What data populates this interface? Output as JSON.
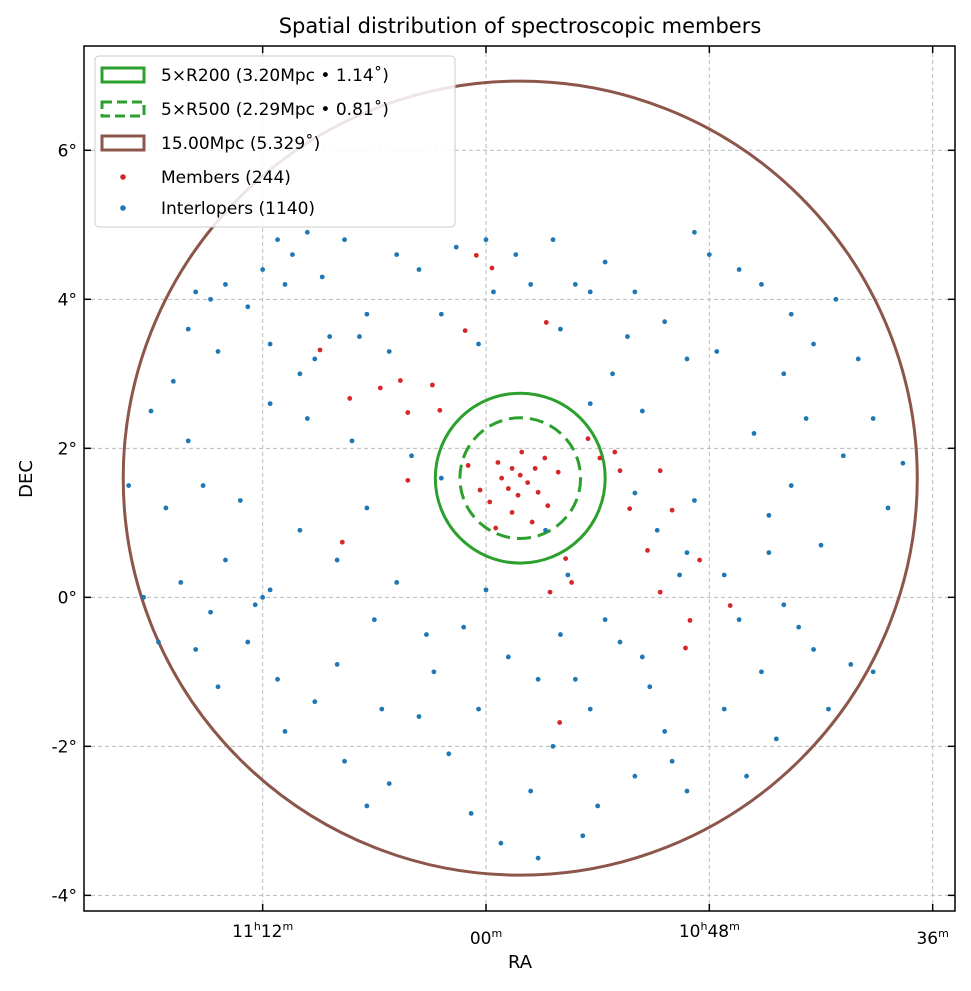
{
  "chart_data": {
    "type": "scatter",
    "title": "Spatial distribution of spectroscopic members",
    "xlabel": "RA",
    "ylabel": "DEC",
    "xlim_deg": [
      170.4,
      158.7
    ],
    "ylim_deg": [
      -4.21,
      7.4
    ],
    "grid": true,
    "legend_placement": "top-left",
    "x_ticks": [
      {
        "value": 168,
        "parts": [
          "11",
          "h",
          "12",
          "m"
        ]
      },
      {
        "value": 165,
        "parts": [
          "",
          "",
          "00",
          "m"
        ]
      },
      {
        "value": 162,
        "parts": [
          "10",
          "h",
          "48",
          "m"
        ]
      },
      {
        "value": 159,
        "parts": [
          "",
          "",
          "36",
          "m"
        ]
      }
    ],
    "y_ticks": [
      {
        "value": 6,
        "label": "6°"
      },
      {
        "value": 4,
        "label": "4°"
      },
      {
        "value": 2,
        "label": "2°"
      },
      {
        "value": 0,
        "label": "0°"
      },
      {
        "value": -2,
        "label": "-2°"
      },
      {
        "value": -4,
        "label": "-4°"
      }
    ],
    "center": {
      "ra": 164.54,
      "dec": 1.6
    },
    "circles": [
      {
        "name": "r200",
        "label": "5×R200 (3.20Mpc • 1.14˚)",
        "radius_deg": 1.14,
        "color": "#2ca02c",
        "dashed": false
      },
      {
        "name": "r500",
        "label": "5×R500 (2.29Mpc • 0.81˚)",
        "radius_deg": 0.81,
        "color": "#2ca02c",
        "dashed": true
      },
      {
        "name": "15mpc",
        "label": "15.00Mpc (5.329˚)",
        "radius_deg": 5.329,
        "color": "#8c564b",
        "dashed": false
      }
    ],
    "series": [
      {
        "name": "Interlopers",
        "label": "Interlopers (1140)",
        "color": "#1f77b4",
        "points": [
          [
            168.9,
            4.1
          ],
          [
            168.7,
            4.0
          ],
          [
            168.5,
            4.2
          ],
          [
            168.2,
            3.9
          ],
          [
            168.0,
            4.4
          ],
          [
            167.8,
            4.8
          ],
          [
            167.6,
            4.6
          ],
          [
            167.4,
            4.9
          ],
          [
            167.3,
            3.2
          ],
          [
            167.1,
            3.5
          ],
          [
            167.5,
            3.0
          ],
          [
            167.9,
            3.4
          ],
          [
            168.6,
            3.3
          ],
          [
            169.2,
            2.9
          ],
          [
            169.5,
            2.5
          ],
          [
            169.0,
            2.1
          ],
          [
            167.7,
            4.2
          ],
          [
            167.2,
            4.3
          ],
          [
            166.9,
            4.8
          ],
          [
            166.6,
            3.8
          ],
          [
            166.3,
            3.3
          ],
          [
            165.9,
            4.4
          ],
          [
            165.6,
            3.8
          ],
          [
            165.4,
            4.7
          ],
          [
            165.1,
            3.4
          ],
          [
            164.9,
            4.1
          ],
          [
            164.6,
            4.6
          ],
          [
            164.1,
            4.8
          ],
          [
            163.8,
            4.2
          ],
          [
            163.4,
            4.5
          ],
          [
            163.0,
            4.1
          ],
          [
            162.6,
            3.7
          ],
          [
            162.2,
            4.9
          ],
          [
            162.0,
            4.6
          ],
          [
            161.9,
            3.3
          ],
          [
            161.6,
            4.4
          ],
          [
            161.3,
            4.2
          ],
          [
            160.9,
            3.8
          ],
          [
            160.6,
            3.4
          ],
          [
            160.3,
            4.0
          ],
          [
            160.0,
            3.2
          ],
          [
            159.8,
            2.4
          ],
          [
            159.4,
            1.8
          ],
          [
            159.6,
            1.2
          ],
          [
            160.2,
            1.9
          ],
          [
            160.5,
            0.7
          ],
          [
            160.9,
            1.5
          ],
          [
            161.4,
            2.2
          ],
          [
            161.2,
            1.1
          ],
          [
            161.8,
            0.3
          ],
          [
            162.3,
            0.6
          ],
          [
            162.4,
            0.3
          ],
          [
            162.7,
            0.9
          ],
          [
            162.2,
            1.3
          ],
          [
            163.0,
            1.4
          ],
          [
            163.6,
            2.6
          ],
          [
            163.3,
            3.0
          ],
          [
            162.9,
            2.5
          ],
          [
            161.6,
            -0.3
          ],
          [
            161.0,
            -0.1
          ],
          [
            160.6,
            -0.7
          ],
          [
            160.1,
            -0.9
          ],
          [
            159.8,
            -1.0
          ],
          [
            160.4,
            -1.5
          ],
          [
            161.1,
            -1.9
          ],
          [
            161.5,
            -2.4
          ],
          [
            162.3,
            -2.6
          ],
          [
            162.6,
            -1.8
          ],
          [
            162.9,
            -0.8
          ],
          [
            163.4,
            -0.3
          ],
          [
            163.8,
            -1.1
          ],
          [
            164.1,
            -2.0
          ],
          [
            163.5,
            -2.8
          ],
          [
            163.7,
            -3.2
          ],
          [
            164.4,
            -2.6
          ],
          [
            164.8,
            -3.3
          ],
          [
            165.2,
            -2.9
          ],
          [
            165.5,
            -2.1
          ],
          [
            165.9,
            -1.6
          ],
          [
            166.3,
            -2.5
          ],
          [
            166.9,
            -2.2
          ],
          [
            167.3,
            -1.4
          ],
          [
            167.8,
            -1.1
          ],
          [
            168.2,
            -0.6
          ],
          [
            168.7,
            -0.2
          ],
          [
            169.1,
            0.2
          ],
          [
            168.9,
            -0.7
          ],
          [
            168.5,
            0.5
          ],
          [
            168.0,
            0.0
          ],
          [
            167.9,
            0.1
          ],
          [
            168.1,
            -0.1
          ],
          [
            167.5,
            0.9
          ],
          [
            167.0,
            0.5
          ],
          [
            166.6,
            1.2
          ],
          [
            166.2,
            0.2
          ],
          [
            165.8,
            -0.5
          ],
          [
            165.3,
            -0.4
          ],
          [
            165.0,
            0.1
          ],
          [
            164.7,
            -0.8
          ],
          [
            164.3,
            -1.1
          ],
          [
            163.9,
            0.3
          ],
          [
            164.2,
            0.9
          ],
          [
            165.6,
            1.6
          ],
          [
            166.0,
            1.9
          ],
          [
            166.8,
            2.1
          ],
          [
            167.4,
            2.4
          ],
          [
            168.3,
            1.3
          ],
          [
            169.3,
            1.2
          ],
          [
            169.6,
            0.0
          ],
          [
            169.4,
            -0.6
          ],
          [
            168.6,
            -1.2
          ],
          [
            167.7,
            -1.8
          ],
          [
            167.0,
            -0.9
          ],
          [
            166.5,
            -0.3
          ],
          [
            165.7,
            -1.0
          ],
          [
            164.0,
            -0.5
          ],
          [
            163.2,
            -0.6
          ],
          [
            162.8,
            -1.2
          ],
          [
            162.5,
            -2.2
          ],
          [
            161.8,
            -1.5
          ],
          [
            161.3,
            -1.0
          ],
          [
            160.8,
            -0.4
          ],
          [
            161.2,
            0.6
          ],
          [
            160.7,
            2.4
          ],
          [
            161.0,
            3.0
          ],
          [
            162.3,
            3.2
          ],
          [
            163.1,
            3.5
          ],
          [
            163.6,
            4.1
          ],
          [
            164.0,
            3.6
          ],
          [
            164.4,
            4.2
          ],
          [
            165.0,
            4.8
          ],
          [
            166.2,
            4.6
          ],
          [
            166.7,
            3.5
          ],
          [
            167.9,
            2.6
          ],
          [
            168.8,
            1.5
          ],
          [
            169.8,
            1.5
          ],
          [
            169.0,
            3.6
          ],
          [
            166.4,
            -1.5
          ],
          [
            165.1,
            -1.5
          ],
          [
            163.6,
            -1.5
          ],
          [
            163.0,
            -2.4
          ],
          [
            166.6,
            -2.8
          ],
          [
            164.3,
            -3.5
          ]
        ]
      },
      {
        "name": "Members",
        "label": "Members (244)",
        "color": "#d62728",
        "points": [
          [
            164.54,
            1.64
          ],
          [
            164.65,
            1.73
          ],
          [
            164.44,
            1.54
          ],
          [
            164.7,
            1.46
          ],
          [
            164.34,
            1.73
          ],
          [
            164.79,
            1.6
          ],
          [
            164.3,
            1.41
          ],
          [
            164.57,
            1.37
          ],
          [
            164.84,
            1.81
          ],
          [
            164.21,
            1.87
          ],
          [
            164.95,
            1.28
          ],
          [
            164.17,
            1.23
          ],
          [
            164.52,
            1.95
          ],
          [
            165.24,
            1.77
          ],
          [
            165.08,
            1.44
          ],
          [
            164.03,
            1.68
          ],
          [
            164.65,
            1.14
          ],
          [
            164.38,
            1.01
          ],
          [
            164.87,
            0.93
          ],
          [
            163.47,
            1.87
          ],
          [
            163.27,
            1.95
          ],
          [
            163.2,
            1.7
          ],
          [
            163.07,
            1.19
          ],
          [
            162.66,
            1.7
          ],
          [
            162.83,
            0.63
          ],
          [
            163.93,
            0.52
          ],
          [
            163.85,
            0.2
          ],
          [
            164.14,
            0.07
          ],
          [
            166.15,
            2.91
          ],
          [
            166.05,
            2.48
          ],
          [
            166.42,
            2.81
          ],
          [
            165.72,
            2.85
          ],
          [
            165.62,
            2.51
          ],
          [
            166.83,
            2.67
          ],
          [
            167.23,
            3.32
          ],
          [
            166.93,
            0.74
          ],
          [
            166.05,
            1.57
          ],
          [
            165.28,
            3.58
          ],
          [
            165.13,
            4.59
          ],
          [
            164.92,
            4.42
          ],
          [
            164.19,
            3.69
          ],
          [
            162.26,
            -0.31
          ],
          [
            162.13,
            0.5
          ],
          [
            161.72,
            -0.11
          ],
          [
            162.32,
            -0.68
          ],
          [
            164.01,
            -1.68
          ],
          [
            162.66,
            0.07
          ],
          [
            162.5,
            1.17
          ],
          [
            163.63,
            2.13
          ]
        ]
      }
    ]
  }
}
